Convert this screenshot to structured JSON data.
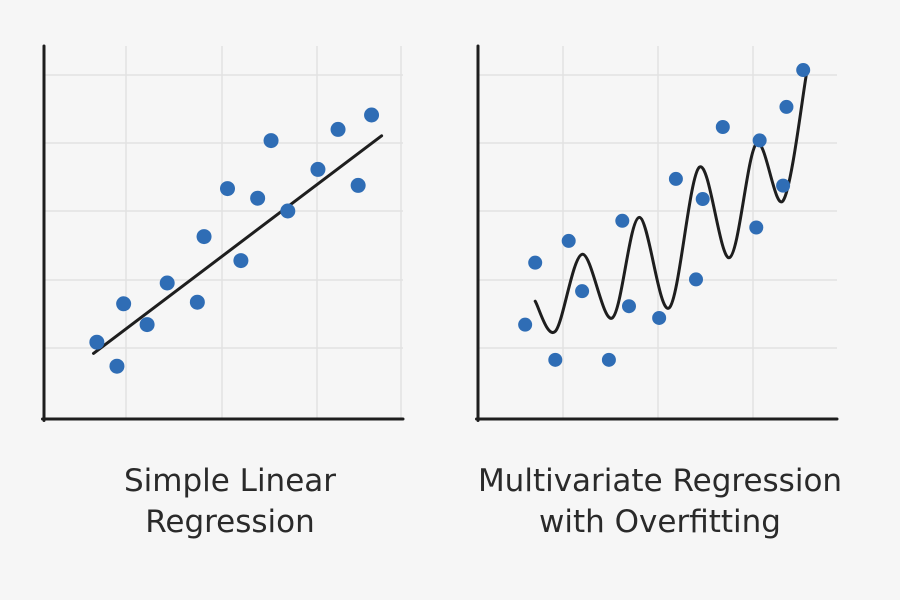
{
  "colors": {
    "background": "#f6f6f6",
    "point": "#2f6db5",
    "line": "#1e1e1e",
    "axis": "#1e1e1e",
    "grid": "#e2e2e2",
    "text": "#2a2a2a"
  },
  "chart_data": [
    {
      "type": "scatter",
      "title_lines": [
        "Simple Linear",
        "Regression"
      ],
      "grid": true,
      "xlim": [
        0,
        10
      ],
      "ylim": [
        0,
        10
      ],
      "series": [
        {
          "kind": "points",
          "x": [
            1.1,
            1.7,
            1.9,
            2.6,
            3.2,
            4.1,
            4.3,
            5.0,
            5.4,
            5.9,
            6.3,
            6.8,
            7.7,
            8.3,
            8.9,
            9.3
          ],
          "y": [
            1.65,
            0.9,
            2.85,
            2.2,
            3.5,
            2.9,
            4.95,
            6.45,
            4.2,
            6.15,
            7.95,
            5.75,
            7.05,
            8.3,
            6.55,
            8.75
          ]
        },
        {
          "kind": "fit-line",
          "x": [
            1.0,
            9.6
          ],
          "y": [
            1.3,
            8.1
          ]
        }
      ]
    },
    {
      "type": "scatter",
      "title_lines": [
        "Multivariate Regression",
        "with Overfitting"
      ],
      "grid": true,
      "xlim": [
        0,
        10
      ],
      "ylim": [
        0,
        10
      ],
      "series": [
        {
          "kind": "points",
          "x": [
            0.9,
            1.2,
            1.8,
            2.2,
            2.6,
            3.4,
            3.8,
            4.0,
            4.9,
            5.4,
            6.0,
            6.2,
            6.8,
            7.8,
            7.9,
            8.6,
            8.7,
            9.2
          ],
          "y": [
            2.1,
            3.95,
            1.05,
            4.6,
            3.1,
            1.05,
            5.2,
            2.65,
            2.3,
            6.45,
            3.45,
            5.85,
            8.0,
            5.0,
            7.6,
            6.25,
            8.6,
            9.7
          ],
          "marker_size": 7
        },
        {
          "kind": "overfit-curve",
          "x": [
            1.2,
            1.8,
            2.6,
            3.5,
            4.3,
            5.2,
            6.1,
            7.0,
            7.8,
            8.6,
            9.3
          ],
          "y": [
            2.8,
            1.9,
            4.2,
            2.3,
            5.3,
            2.6,
            6.8,
            4.1,
            7.5,
            5.8,
            9.6
          ]
        }
      ]
    }
  ]
}
